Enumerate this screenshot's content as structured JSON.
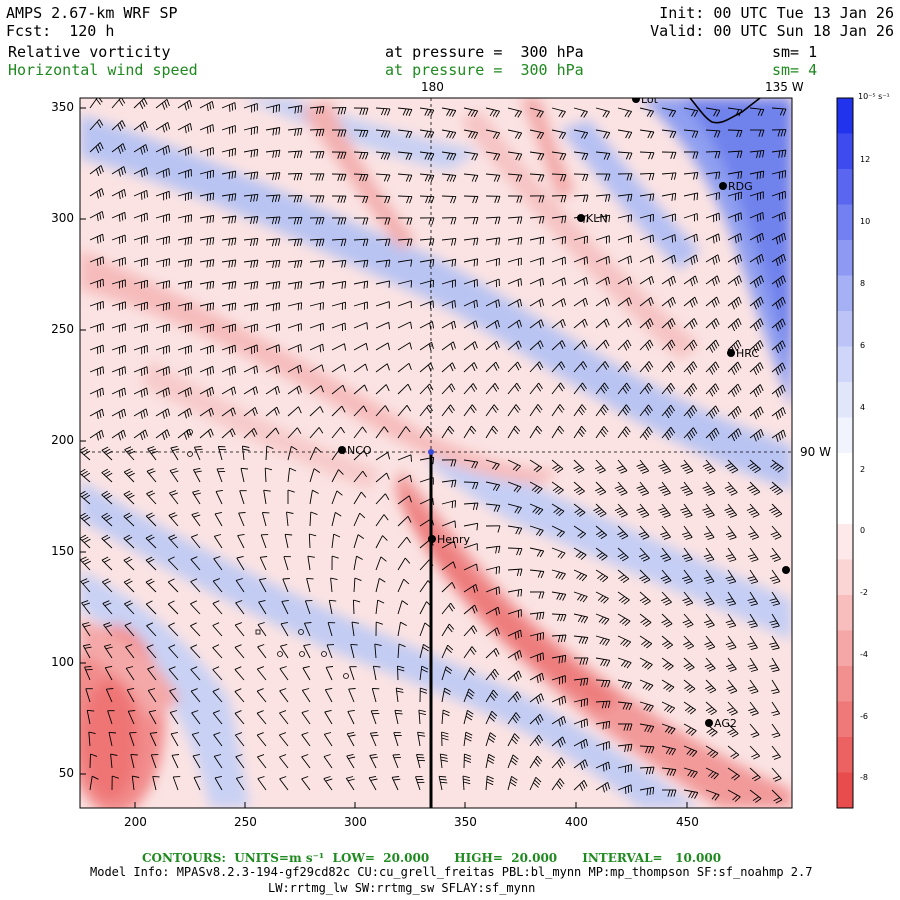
{
  "header": {
    "model": "AMPS 2.67-km WRF SP",
    "forecast": "Fcst:  120 h",
    "init": "Init: 00 UTC Tue 13 Jan 26",
    "valid": "Valid: 00 UTC Sun 18 Jan 26",
    "field1": "Relative vorticity",
    "field1_level": "at pressure =  300 hPa",
    "field1_sm": "sm= 1",
    "field2": "Horizontal wind speed",
    "field2_level": "at pressure =  300 hPa",
    "field2_sm": "sm= 4"
  },
  "map": {
    "meridian_label_180": "180",
    "meridian_label_135w": "135 W",
    "parallel_label_90w": "90 W",
    "x_ticks": [
      "200",
      "250",
      "300",
      "350",
      "400",
      "450"
    ],
    "y_ticks": [
      "50",
      "100",
      "150",
      "200",
      "250",
      "300",
      "350"
    ],
    "stations": [
      {
        "name": "Lot"
      },
      {
        "name": "RDG"
      },
      {
        "name": "KLN"
      },
      {
        "name": "HRC"
      },
      {
        "name": "NCO"
      },
      {
        "name": "Henry"
      },
      {
        "name": "AG2"
      },
      {
        "name": ""
      }
    ]
  },
  "colorbar": {
    "unit": "10⁻⁵ s⁻¹",
    "ticks": [
      "12",
      "10",
      "8",
      "6",
      "4",
      "2",
      "0",
      "-2",
      "-4",
      "-6",
      "-8"
    ]
  },
  "footer": {
    "contours": "CONTOURS:  UNITS=m s⁻¹  LOW=  20.000      HIGH=  20.000      INTERVAL=   10.000",
    "model_info": "Model Info: MPASv8.2.3-194-gf29cd82c CU:cu_grell_freitas PBL:bl_mynn MP:mp_thompson SF:sf_noahmp 2.7",
    "physics": "LW:rrtmg_lw SW:rrtmg_sw SFLAY:sf_mynn"
  },
  "colors": {
    "positive": "#3344ee",
    "negative": "#ee4444",
    "barb": "#000000",
    "contour_label": "#1f8a1f"
  }
}
